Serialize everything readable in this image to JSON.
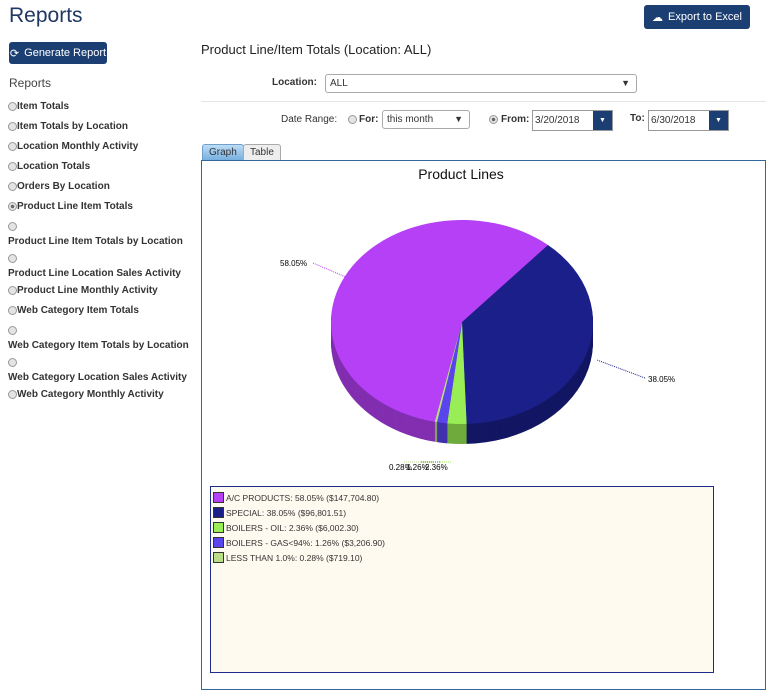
{
  "header": {
    "title": "Reports",
    "export_label": "Export to Excel",
    "export_icon": "cloud-download-icon"
  },
  "sidebar": {
    "generate_label": "Generate Report",
    "generate_icon": "refresh-icon",
    "heading": "Reports",
    "items": [
      {
        "label": "Item Totals",
        "selected": false
      },
      {
        "label": "Item Totals by Location",
        "selected": false
      },
      {
        "label": "Location Monthly Activity",
        "selected": false
      },
      {
        "label": "Location Totals",
        "selected": false
      },
      {
        "label": "Orders By Location",
        "selected": false
      },
      {
        "label": "Product Line Item Totals",
        "selected": true
      },
      {
        "label": "Product Line Item Totals by Location",
        "selected": false
      },
      {
        "label": "Product Line Location Sales Activity",
        "selected": false
      },
      {
        "label": "Product Line Monthly Activity",
        "selected": false
      },
      {
        "label": "Web Category Item Totals",
        "selected": false
      },
      {
        "label": "Web Category Item Totals by Location",
        "selected": false
      },
      {
        "label": "Web Category Location Sales Activity",
        "selected": false
      },
      {
        "label": "Web Category Monthly Activity",
        "selected": false
      }
    ]
  },
  "main": {
    "heading": "Product Line/Item Totals (Location: ALL)",
    "location_label": "Location:",
    "location_value": "ALL",
    "date_range_label": "Date Range:",
    "for_label": "For:",
    "for_value": "this month",
    "from_label": "From:",
    "from_value": "3/20/2018",
    "to_label": "To:",
    "to_value": "6/30/2018",
    "tabs": [
      "Graph",
      "Table"
    ],
    "active_tab": "Graph"
  },
  "chart_data": {
    "type": "pie",
    "title": "Product Lines",
    "slices": [
      {
        "name": "SPECIAL",
        "percent": 38.05,
        "amount": "$96,801.51",
        "color": "#1a1f8a",
        "label": "38.05%",
        "legend": "SPECIAL: 38.05% ($96,801.51)"
      },
      {
        "name": "BOILERS - OIL",
        "percent": 2.36,
        "amount": "$6,002.30",
        "color": "#99ee55",
        "label": "2.36%",
        "legend": "BOILERS - OIL: 2.36% ($6,002.30)"
      },
      {
        "name": "BOILERS - GAS<94%",
        "percent": 1.26,
        "amount": "$3,206.90",
        "color": "#5a44ee",
        "label": "1.26%",
        "legend": "BOILERS - GAS<94%: 1.26% ($3,206.90)"
      },
      {
        "name": "LESS THAN 1.0%",
        "percent": 0.28,
        "amount": "$719.10",
        "color": "#bbdd88",
        "label": "0.28%",
        "legend": "LESS THAN 1.0%: 0.28% ($719.10)"
      },
      {
        "name": "A/C PRODUCTS",
        "percent": 58.05,
        "amount": "$147,704.80",
        "color": "#b540f5",
        "label": "58.05%",
        "legend": "A/C PRODUCTS: 58.05% ($147,704.80)"
      }
    ],
    "legend_order": [
      4,
      0,
      1,
      2,
      3
    ]
  }
}
